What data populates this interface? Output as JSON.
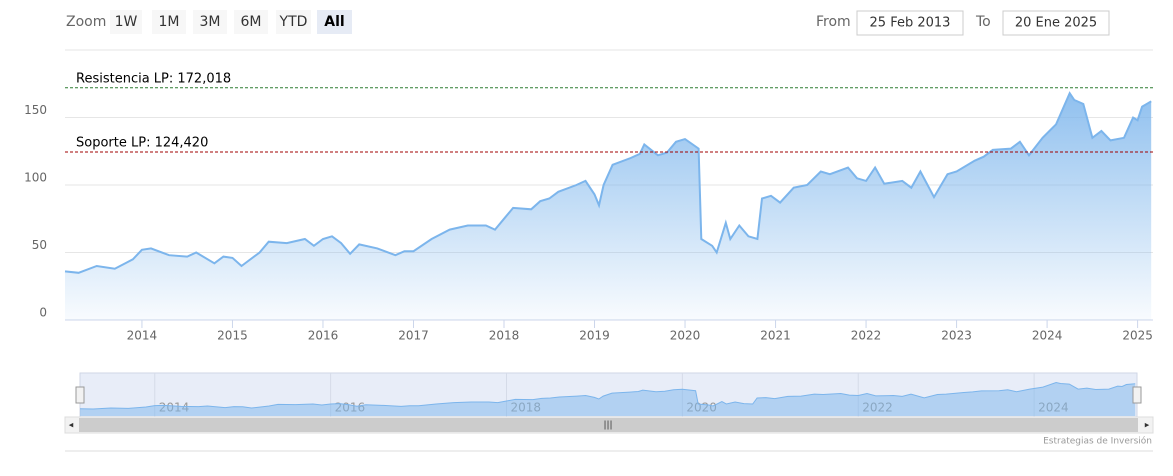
{
  "ui": {
    "zoom_label": "Zoom",
    "buttons": [
      "1W",
      "1M",
      "3M",
      "6M",
      "YTD",
      "All"
    ],
    "selected_button": 5,
    "from_label": "From",
    "from_value": "25 Feb 2013",
    "to_label": "To",
    "to_value": "20 Ene 2025"
  },
  "credit": "Estrategias de Inversión",
  "chart_data": {
    "type": "area",
    "color": "#7cb5ec",
    "grid": true,
    "xlim": [
      2013.15,
      2025.17
    ],
    "xticks": [
      2014,
      2015,
      2016,
      2017,
      2018,
      2019,
      2020,
      2021,
      2022,
      2023,
      2024,
      2025
    ],
    "ylim": [
      0,
      200
    ],
    "yticks": [
      0,
      50,
      100,
      150
    ],
    "plot_lines": [
      {
        "label": "Resistencia LP: 172,018",
        "value": 172.018,
        "color": "#2e7d32"
      },
      {
        "label": "Soporte LP: 124,420",
        "value": 124.42,
        "color": "#a00000"
      }
    ],
    "navigator": {
      "xlim": [
        2013.15,
        2025.17
      ],
      "xticks": [
        2014,
        2016,
        2018,
        2020,
        2022,
        2024
      ]
    },
    "x": [
      2013.15,
      2013.3,
      2013.5,
      2013.7,
      2013.9,
      2014.0,
      2014.1,
      2014.3,
      2014.5,
      2014.6,
      2014.8,
      2014.9,
      2015.0,
      2015.1,
      2015.3,
      2015.4,
      2015.6,
      2015.8,
      2015.9,
      2016.0,
      2016.1,
      2016.2,
      2016.3,
      2016.4,
      2016.6,
      2016.8,
      2016.9,
      2017.0,
      2017.2,
      2017.4,
      2017.6,
      2017.8,
      2017.9,
      2018.0,
      2018.1,
      2018.3,
      2018.4,
      2018.5,
      2018.6,
      2018.8,
      2018.9,
      2019.0,
      2019.05,
      2019.1,
      2019.2,
      2019.4,
      2019.5,
      2019.55,
      2019.7,
      2019.8,
      2019.9,
      2020.0,
      2020.15,
      2020.18,
      2020.3,
      2020.35,
      2020.45,
      2020.5,
      2020.6,
      2020.7,
      2020.8,
      2020.85,
      2020.95,
      2021.05,
      2021.2,
      2021.35,
      2021.5,
      2021.6,
      2021.8,
      2021.9,
      2022.0,
      2022.1,
      2022.2,
      2022.4,
      2022.5,
      2022.6,
      2022.75,
      2022.9,
      2023.0,
      2023.2,
      2023.3,
      2023.4,
      2023.6,
      2023.7,
      2023.8,
      2023.95,
      2024.1,
      2024.25,
      2024.3,
      2024.4,
      2024.5,
      2024.6,
      2024.7,
      2024.85,
      2024.95,
      2025.0,
      2025.05,
      2025.15
    ],
    "series": [
      {
        "values": [
          36,
          35,
          40,
          38,
          45,
          52,
          53,
          48,
          47,
          50,
          42,
          47,
          46,
          40,
          50,
          58,
          57,
          60,
          55,
          60,
          62,
          57,
          49,
          56,
          53,
          48,
          51,
          51,
          60,
          67,
          70,
          70,
          67,
          75,
          83,
          82,
          88,
          90,
          95,
          100,
          103,
          93,
          85,
          100,
          115,
          120,
          123,
          130,
          122,
          124,
          132,
          134,
          127,
          60,
          55,
          50,
          72,
          60,
          70,
          62,
          60,
          90,
          92,
          87,
          98,
          100,
          110,
          108,
          113,
          105,
          103,
          113,
          101,
          103,
          98,
          110,
          91,
          108,
          110,
          118,
          121,
          126,
          127,
          132,
          122,
          135,
          145,
          168,
          163,
          160,
          135,
          140,
          133,
          135,
          150,
          148,
          158,
          162
        ]
      }
    ]
  }
}
